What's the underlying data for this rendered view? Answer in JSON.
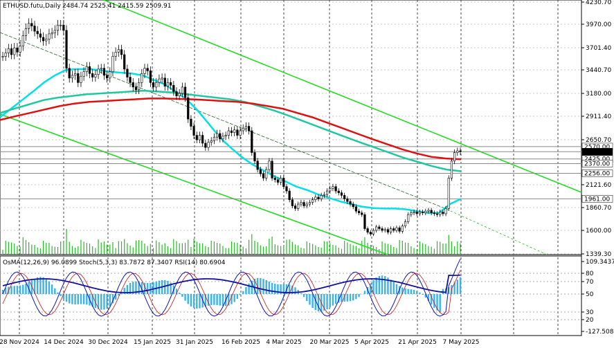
{
  "header": {
    "symbol": "ETHUSD.futu,Daily",
    "ohlc": "2484.74 2525.41 2415.59 2509.91"
  },
  "osc_header": "OsMA(12,26,9) 96.0899  Stoch(5,3,3) 83.7872 87.3407  RSI(14) 80.6904",
  "colors": {
    "candles": "#000000",
    "ma_fast": "#00e0e8",
    "ma_mid": "#20c8a0",
    "ma_slow": "#e01010",
    "channel": "#22dd22",
    "histogram": "#3ab4e8",
    "rsi": "#1010a0",
    "stoch_main": "#1010c0",
    "stoch_signal": "#d01010"
  },
  "chart_data": {
    "type": "line",
    "title": "",
    "timeframe": "Daily",
    "y_axis_ticks": [
      "4230.70",
      "3970.00",
      "3701.40",
      "3440.70",
      "3180.00",
      "2911.40",
      "2650.70",
      "2121.60",
      "1860.70",
      "1600.00",
      "1339.30"
    ],
    "x_axis_ticks": [
      "28 Nov 2024",
      "14 Dec 2024",
      "30 Dec 2024",
      "15 Jan 2025",
      "31 Jan 2025",
      "16 Feb 2025",
      "4 Mar 2025",
      "20 Mar 2025",
      "5 Apr 2025",
      "21 Apr 2025",
      "7 May 2025"
    ],
    "price_labels": [
      "2570.00",
      "2509.91",
      "2425.00",
      "2370.00",
      "2256.00",
      "1961.00"
    ],
    "ylim": [
      1339.3,
      4230.7
    ],
    "series": [
      {
        "key": "price",
        "values": [
          3600,
          3640,
          3690,
          3620,
          3700,
          3650,
          3720,
          3840,
          3920,
          3980,
          3950,
          3890,
          3860,
          3820,
          3780,
          3800,
          3860,
          3870,
          3900,
          3960,
          3960,
          3900,
          3460,
          3350,
          3380,
          3400,
          3300,
          3370,
          3420,
          3480,
          3400,
          3360,
          3390,
          3450,
          3460,
          3380,
          3350,
          3420,
          3600,
          3650,
          3680,
          3620,
          3450,
          3360,
          3300,
          3250,
          3220,
          3300,
          3400,
          3460,
          3430,
          3300,
          3250,
          3300,
          3340,
          3350,
          3260,
          3300,
          3270,
          3200,
          3150,
          3180,
          3250,
          3130,
          2880,
          2800,
          2700,
          2650,
          2700,
          2610,
          2560,
          2620,
          2640,
          2680,
          2720,
          2660,
          2690,
          2700,
          2750,
          2730,
          2760,
          2700,
          2750,
          2780,
          2800,
          2750,
          2500,
          2400,
          2300,
          2250,
          2200,
          2300,
          2400,
          2200,
          2180,
          2150,
          2200,
          2100,
          2050,
          1950,
          1880,
          1850,
          1900,
          1920,
          1880,
          1900,
          1920,
          1950,
          1980,
          1960,
          2000,
          2010,
          2050,
          2080,
          2100,
          2050,
          2030,
          2000,
          1960,
          1930,
          1900,
          1870,
          1820,
          1800,
          1780,
          1620,
          1580,
          1560,
          1600,
          1640,
          1620,
          1600,
          1610,
          1580,
          1620,
          1600,
          1630,
          1590,
          1650,
          1700,
          1780,
          1800,
          1810,
          1790,
          1810,
          1800,
          1820,
          1830,
          1800,
          1790,
          1780,
          1810,
          1790,
          1850,
          2200,
          2400,
          2500,
          2520,
          2510
        ]
      },
      {
        "key": "ma_fast",
        "values": [
          2900,
          3000,
          3100,
          3200,
          3300,
          3380,
          3440,
          3450,
          3450,
          3440,
          3420,
          3410,
          3400,
          3380,
          3330,
          3280,
          3200,
          3110,
          2980,
          2830,
          2680,
          2560,
          2450,
          2360,
          2290,
          2220,
          2160,
          2100,
          2060,
          2010,
          1970,
          1930,
          1900,
          1870,
          1855,
          1850,
          1850,
          1840,
          1820,
          1800,
          1800,
          1900,
          1960
        ]
      },
      {
        "key": "ma_mid",
        "values": [
          2950,
          3000,
          3050,
          3100,
          3130,
          3150,
          3170,
          3180,
          3190,
          3200,
          3210,
          3200,
          3190,
          3170,
          3150,
          3130,
          3110,
          3080,
          3030,
          2980,
          2920,
          2860,
          2800,
          2740,
          2680,
          2620,
          2560,
          2500,
          2440,
          2390,
          2340,
          2300,
          2280
        ]
      },
      {
        "key": "ma_slow",
        "values": [
          2870,
          2910,
          2950,
          2990,
          3030,
          3060,
          3080,
          3090,
          3100,
          3110,
          3120,
          3120,
          3115,
          3110,
          3100,
          3090,
          3080,
          3060,
          3030,
          3000,
          2950,
          2900,
          2840,
          2780,
          2720,
          2660,
          2600,
          2540,
          2490,
          2450,
          2430,
          2420
        ]
      }
    ],
    "grid": true,
    "legend": "none"
  }
}
